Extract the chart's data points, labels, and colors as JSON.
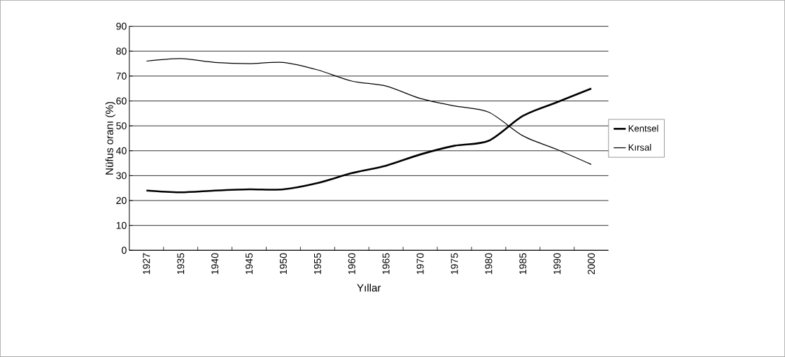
{
  "chart_data": {
    "type": "line",
    "xlabel": "Yıllar",
    "ylabel": "Nüfus oranı (%)",
    "categories": [
      "1927",
      "1935",
      "1940",
      "1945",
      "1950",
      "1955",
      "1960",
      "1965",
      "1970",
      "1975",
      "1980",
      "1985",
      "1990",
      "2000"
    ],
    "series": [
      {
        "name": "Kentsel",
        "color": "#000000",
        "values": [
          24,
          23.3,
          24,
          24.5,
          24.5,
          27,
          31,
          34,
          38.5,
          42,
          44,
          54,
          59.5,
          65
        ]
      },
      {
        "name": "Kırsal",
        "color": "#000000",
        "values": [
          76,
          77,
          75.5,
          75,
          75.5,
          72.5,
          68,
          66,
          61,
          58,
          55.5,
          46,
          40.5,
          34.5
        ]
      }
    ],
    "ylim": [
      0,
      90
    ],
    "yticks": [
      0,
      10,
      20,
      30,
      40,
      50,
      60,
      70,
      80,
      90
    ],
    "grid": "y",
    "legend": "right",
    "marker": "none",
    "line_style": "solid"
  }
}
